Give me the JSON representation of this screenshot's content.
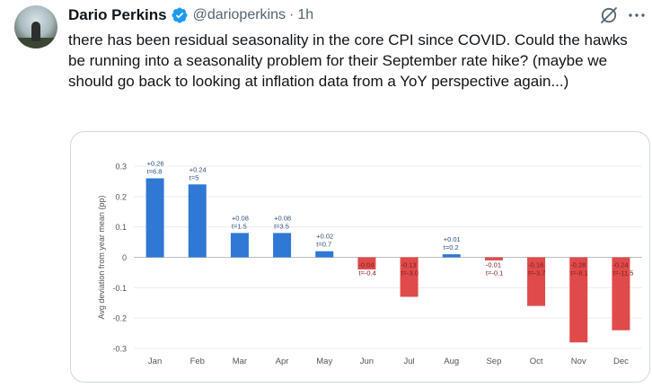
{
  "post": {
    "author_name": "Dario Perkins",
    "handle": "@darioperkins",
    "separator": "·",
    "time": "1h",
    "text": "there has been residual seasonality in the core CPI since COVID. Could the hawks be running into a seasonality problem for their September rate hike? (maybe we should go back to looking at inflation data from a YoY perspective again...)",
    "icons": [
      "verified-badge-icon",
      "grok-icon",
      "more-icon"
    ]
  },
  "colors": {
    "positive": "#2f78d4",
    "negative": "#e04a4a",
    "verified": "#1d9bf0"
  },
  "chart_data": {
    "type": "bar",
    "ylabel": "Avg deviation from year mean (pp)",
    "ylim": [
      -0.3,
      0.3
    ],
    "yticks": [
      "0.3",
      "0.2",
      "0.1",
      "0",
      "-0.1",
      "-0.2",
      "-0.3"
    ],
    "categories": [
      "Jan",
      "Feb",
      "Mar",
      "Apr",
      "May",
      "Jun",
      "Jul",
      "Aug",
      "Sep",
      "Oct",
      "Nov",
      "Dec"
    ],
    "values": [
      0.26,
      0.24,
      0.08,
      0.08,
      0.02,
      -0.04,
      -0.13,
      0.01,
      -0.01,
      -0.16,
      -0.28,
      -0.24
    ],
    "value_labels": [
      "+0.26",
      "+0.24",
      "+0.08",
      "+0.08",
      "+0.02",
      "-0.04",
      "-0.13",
      "+0.01",
      "-0.01",
      "-0.16",
      "-0.28",
      "-0.24"
    ],
    "t_labels": [
      "t=6.8",
      "t=5",
      "t=1.5",
      "t=3.5",
      "t=0.7",
      "t=-0.4",
      "t=-3.0",
      "t=0.2",
      "t=-0.1",
      "t=-3.7",
      "t=-8.1",
      "t=-11.5"
    ]
  }
}
